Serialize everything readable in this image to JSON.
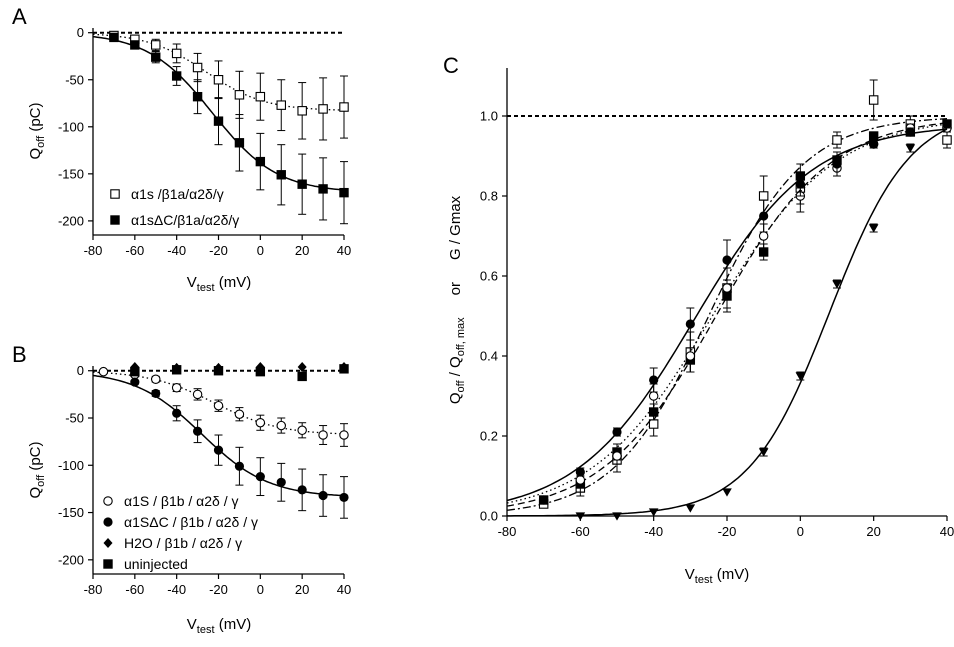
{
  "chart_data": [
    {
      "panel": "A",
      "type": "scatter",
      "xlabel": "V",
      "xlabel_sub": "test",
      "xlabel_unit": " (mV)",
      "ylabel": "Q",
      "ylabel_sub": "off",
      "ylabel_unit": " (pC)",
      "xlim": [
        -80,
        40
      ],
      "ylim": [
        -215,
        5
      ],
      "xticks": [
        -80,
        -60,
        -40,
        -20,
        0,
        20,
        40
      ],
      "yticks": [
        0,
        -50,
        -100,
        -150,
        -200
      ],
      "zero_line": true,
      "legend_position": "bottom-left",
      "series": [
        {
          "name": "α1s /β1a/α2δ/γ",
          "marker": "open-square",
          "line": "dotted",
          "x": [
            -70,
            -60,
            -50,
            -40,
            -30,
            -20,
            -10,
            0,
            10,
            20,
            30,
            40
          ],
          "y": [
            -3,
            -7,
            -13,
            -22,
            -37,
            -50,
            -66,
            -68,
            -77,
            -83,
            -81,
            -79
          ],
          "err": [
            2,
            4,
            6,
            10,
            15,
            20,
            25,
            25,
            27,
            30,
            33,
            33
          ]
        },
        {
          "name": "α1sΔC/β1a/α2δ/γ",
          "marker": "filled-square",
          "line": "solid",
          "x": [
            -70,
            -60,
            -50,
            -40,
            -30,
            -20,
            -10,
            0,
            10,
            20,
            30,
            40
          ],
          "y": [
            -5,
            -13,
            -26,
            -46,
            -68,
            -94,
            -117,
            -137,
            -151,
            -161,
            -166,
            -170
          ],
          "err": [
            2,
            4,
            6,
            10,
            18,
            25,
            30,
            30,
            32,
            32,
            33,
            33
          ]
        }
      ]
    },
    {
      "panel": "B",
      "type": "scatter",
      "xlabel": "V",
      "xlabel_sub": "test",
      "xlabel_unit": " (mV)",
      "ylabel": "Q",
      "ylabel_sub": "off",
      "ylabel_unit": " (pC)",
      "xlim": [
        -80,
        40
      ],
      "ylim": [
        -215,
        5
      ],
      "xticks": [
        -80,
        -60,
        -40,
        -20,
        0,
        20,
        40
      ],
      "yticks": [
        0,
        -50,
        -100,
        -150,
        -200
      ],
      "zero_line": true,
      "legend_position": "bottom-left",
      "series": [
        {
          "name": "α1S / β1b / α2δ / γ",
          "marker": "open-circle",
          "line": "dotted",
          "x": [
            -75,
            -60,
            -50,
            -40,
            -30,
            -20,
            -10,
            0,
            10,
            20,
            30,
            40
          ],
          "y": [
            -1,
            -4,
            -9,
            -18,
            -25,
            -37,
            -46,
            -55,
            -58,
            -63,
            -68,
            -68
          ],
          "err": [
            1,
            2,
            3,
            4,
            6,
            6,
            7,
            8,
            8,
            8,
            10,
            12
          ]
        },
        {
          "name": "α1SΔC / β1b / α2δ / γ",
          "marker": "filled-circle",
          "line": "solid",
          "x": [
            -60,
            -50,
            -40,
            -30,
            -20,
            -10,
            0,
            10,
            20,
            30,
            40
          ],
          "y": [
            -12,
            -24,
            -45,
            -64,
            -84,
            -101,
            -112,
            -118,
            -126,
            -132,
            -134
          ],
          "err": [
            2,
            3,
            8,
            12,
            16,
            20,
            20,
            20,
            22,
            22,
            22
          ]
        },
        {
          "name": "H2O / β1b / α2δ / γ",
          "marker": "filled-diamond",
          "line": "none",
          "x": [
            -60,
            -40,
            -20,
            0,
            20,
            40
          ],
          "y": [
            4,
            3,
            3,
            4,
            4,
            4
          ],
          "err": []
        },
        {
          "name": "uninjected",
          "marker": "filled-square",
          "line": "none",
          "x": [
            -60,
            -40,
            -20,
            0,
            20,
            40
          ],
          "y": [
            -1,
            1,
            0,
            -1,
            -6,
            2
          ],
          "err": []
        }
      ]
    },
    {
      "panel": "C",
      "type": "scatter",
      "xlabel": "V",
      "xlabel_sub": "test",
      "xlabel_unit": " (mV)",
      "ylabel": "Q",
      "ylabel_sub": "off",
      "ylabel_mid": " / Q",
      "ylabel_sub2": "off, max",
      "ylabel_or": "or",
      "ylabel_g": "G / Gmax",
      "xlim": [
        -80,
        40
      ],
      "ylim": [
        0,
        1.12
      ],
      "xticks": [
        -80,
        -60,
        -40,
        -20,
        0,
        20,
        40
      ],
      "yticks": [
        0.0,
        0.2,
        0.4,
        0.6,
        0.8,
        1.0
      ],
      "ytick_labels": [
        "0.0",
        "0.2",
        "0.4",
        "0.6",
        "0.8",
        "1.0"
      ],
      "one_line": true,
      "series": [
        {
          "marker": "open-square",
          "line": "dash-dot",
          "x": [
            -70,
            -60,
            -50,
            -40,
            -30,
            -20,
            -10,
            0,
            10,
            20,
            30,
            40
          ],
          "y": [
            0.03,
            0.07,
            0.14,
            0.23,
            0.41,
            0.57,
            0.8,
            0.82,
            0.94,
            1.04,
            0.98,
            0.94
          ],
          "err": [
            0.01,
            0.02,
            0.03,
            0.03,
            0.05,
            0.05,
            0.05,
            0.04,
            0.02,
            0.05,
            0.02,
            0.02
          ]
        },
        {
          "marker": "filled-square",
          "line": "dash",
          "x": [
            -70,
            -60,
            -50,
            -40,
            -30,
            -20,
            -10,
            0,
            10,
            20,
            30,
            40
          ],
          "y": [
            0.04,
            0.08,
            0.16,
            0.26,
            0.39,
            0.55,
            0.66,
            0.85,
            0.89,
            0.95,
            0.96,
            0.98
          ],
          "err": [
            0.01,
            0.02,
            0.02,
            0.02,
            0.03,
            0.04,
            0.02,
            0.03,
            0.02,
            0.01,
            0.01,
            0.01
          ]
        },
        {
          "marker": "open-circle",
          "line": "dotted",
          "x": [
            -60,
            -50,
            -40,
            -30,
            -20,
            -10,
            0,
            10,
            20,
            30,
            40
          ],
          "y": [
            0.09,
            0.15,
            0.3,
            0.4,
            0.57,
            0.7,
            0.8,
            0.87,
            0.93,
            0.97,
            0.97
          ],
          "err": [
            0.01,
            0.02,
            0.03,
            0.04,
            0.05,
            0.03,
            0.04,
            0.02,
            0.01,
            0.01,
            0.01
          ]
        },
        {
          "marker": "filled-circle",
          "line": "solid",
          "x": [
            -70,
            -60,
            -50,
            -40,
            -30,
            -20,
            -10,
            0,
            10,
            20,
            30,
            40
          ],
          "y": [
            0.04,
            0.11,
            0.21,
            0.34,
            0.48,
            0.64,
            0.75,
            0.83,
            0.88,
            0.93,
            0.96,
            0.98
          ],
          "err": [
            0.01,
            0.01,
            0.01,
            0.03,
            0.04,
            0.05,
            0.04,
            0.03,
            0.03,
            0.01,
            0.01,
            0.01
          ]
        },
        {
          "marker": "filled-triangle-down",
          "line": "solid",
          "x": [
            -60,
            -50,
            -40,
            -30,
            -20,
            -10,
            0,
            10,
            20,
            30
          ],
          "y": [
            0.0,
            0.0,
            0.01,
            0.02,
            0.06,
            0.16,
            0.35,
            0.58,
            0.72,
            0.92
          ],
          "err": [
            0.0,
            0.0,
            0.0,
            0.0,
            0.0,
            0.01,
            0.01,
            0.01,
            0.01,
            0.01
          ]
        }
      ]
    }
  ]
}
